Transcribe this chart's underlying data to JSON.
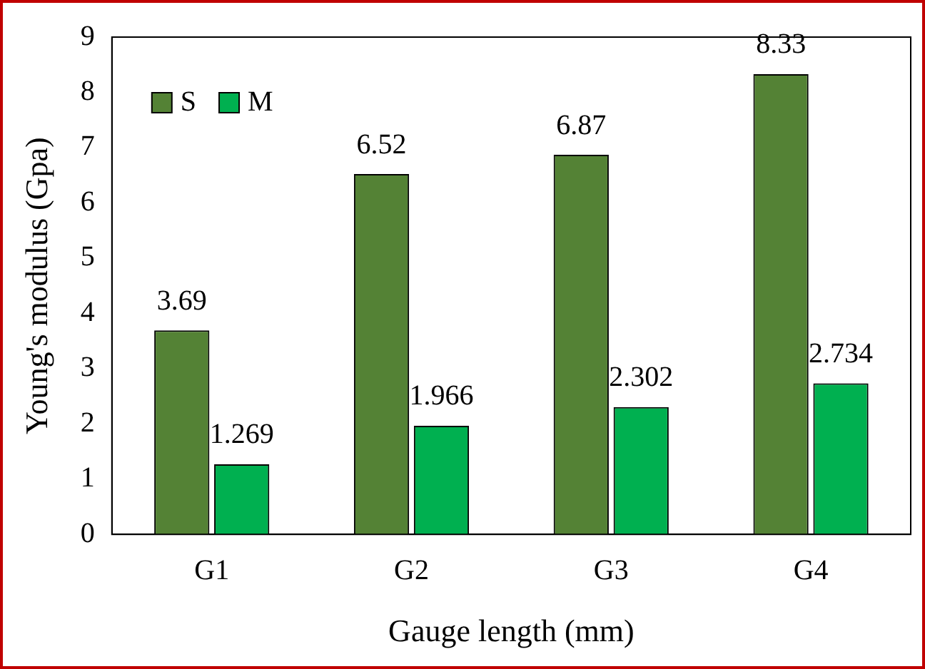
{
  "chart_data": {
    "type": "bar",
    "xlabel": "Gauge length (mm)",
    "ylabel": "Young's modulus (Gpa)",
    "categories": [
      "G1",
      "G2",
      "G3",
      "G4"
    ],
    "series": [
      {
        "name": "S",
        "color": "#548235",
        "values": [
          3.69,
          6.52,
          6.87,
          8.33
        ]
      },
      {
        "name": "M",
        "color": "#00b050",
        "values": [
          1.269,
          1.966,
          2.302,
          2.734
        ]
      }
    ],
    "ylim": [
      0,
      9
    ],
    "yticks": [
      0,
      1,
      2,
      3,
      4,
      5,
      6,
      7,
      8,
      9
    ],
    "grid": false,
    "legend": "top left",
    "data_labels": true
  }
}
